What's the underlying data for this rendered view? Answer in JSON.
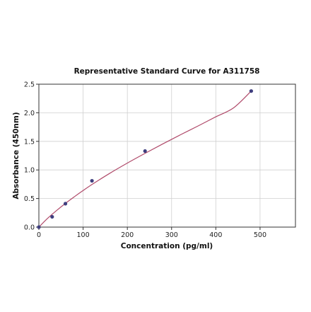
{
  "chart_data": {
    "type": "scatter",
    "title": "Representative Standard Curve for A311758",
    "xlabel": "Concentration (pg/ml)",
    "ylabel": "Absorbance (450nm)",
    "xlim": [
      0,
      580
    ],
    "ylim": [
      0,
      2.5
    ],
    "xticks": [
      0,
      100,
      200,
      300,
      400,
      500
    ],
    "yticks": [
      0.0,
      0.5,
      1.0,
      1.5,
      2.0,
      2.5
    ],
    "grid": true,
    "points": [
      {
        "x": 0,
        "y": 0.0
      },
      {
        "x": 30,
        "y": 0.18
      },
      {
        "x": 60,
        "y": 0.41
      },
      {
        "x": 120,
        "y": 0.81
      },
      {
        "x": 240,
        "y": 1.33
      },
      {
        "x": 480,
        "y": 2.38
      }
    ],
    "fit_curve": {
      "x": [
        0,
        20,
        40,
        60,
        80,
        100,
        120,
        160,
        200,
        240,
        280,
        320,
        360,
        400,
        440,
        480
      ],
      "y": [
        0.0,
        0.155,
        0.29,
        0.415,
        0.53,
        0.64,
        0.745,
        0.94,
        1.12,
        1.29,
        1.455,
        1.615,
        1.77,
        1.93,
        2.085,
        2.38
      ]
    },
    "colors": {
      "point": "#3f3f7f",
      "curve": "#b04a6a",
      "grid": "#d0d0d0",
      "axis": "#333333"
    }
  }
}
